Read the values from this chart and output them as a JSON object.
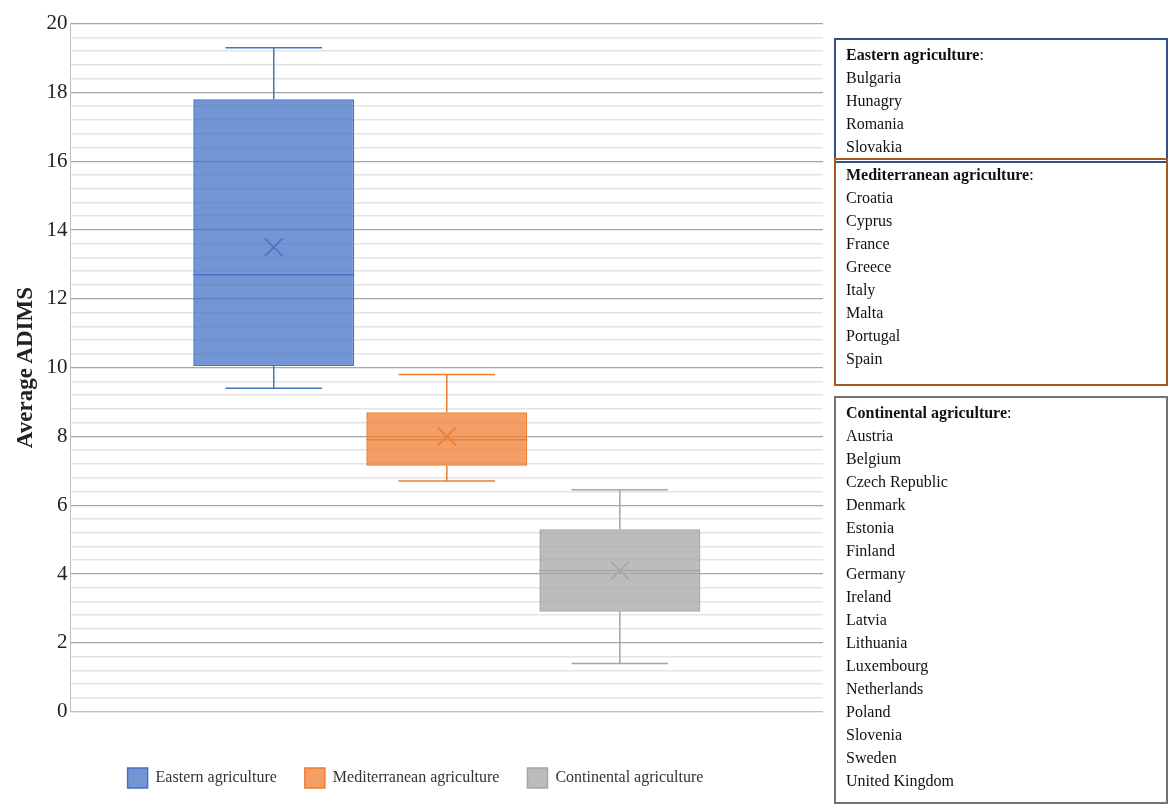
{
  "chart_data": {
    "type": "box",
    "ylabel": "Average ADIMS",
    "categories": [
      null
    ],
    "series": [
      {
        "name": "Eastern agriculture",
        "color": "#4472c4",
        "boxes": [
          {
            "low": 9.4,
            "q1": 10.05,
            "median": 12.7,
            "q3": 17.8,
            "high": 19.3,
            "mean": 13.5
          }
        ]
      },
      {
        "name": "Mediterranean agriculture",
        "color": "#ed7d31",
        "boxes": [
          {
            "low": 6.7,
            "q1": 7.15,
            "median": 7.9,
            "q3": 8.7,
            "high": 9.8,
            "mean": 8.0
          }
        ]
      },
      {
        "name": "Continental agriculture",
        "color": "#a5a5a5",
        "boxes": [
          {
            "low": 1.4,
            "q1": 2.9,
            "median": 4.1,
            "q3": 5.3,
            "high": 6.45,
            "mean": 4.1
          }
        ]
      }
    ],
    "ylim": [
      0,
      20
    ],
    "yticks": [
      0,
      {
        "value": 0.4,
        "label": null
      },
      {
        "value": 0.8,
        "label": null
      },
      {
        "value": 1.2,
        "label": null
      },
      {
        "value": 1.6,
        "label": null
      },
      2,
      {
        "value": 2.4,
        "label": null
      },
      {
        "value": 2.8,
        "label": null
      },
      {
        "value": 3.2,
        "label": null
      },
      {
        "value": 3.6,
        "label": null
      },
      4,
      {
        "value": 4.4,
        "label": null
      },
      {
        "value": 4.8,
        "label": null
      },
      {
        "value": 5.2,
        "label": null
      },
      {
        "value": 5.6,
        "label": null
      },
      6,
      {
        "value": 6.4,
        "label": null
      },
      {
        "value": 6.8,
        "label": null
      },
      {
        "value": 7.2,
        "label": null
      },
      {
        "value": 7.6,
        "label": null
      },
      8,
      {
        "value": 8.4,
        "label": null
      },
      {
        "value": 8.8,
        "label": null
      },
      {
        "value": 9.2,
        "label": null
      },
      {
        "value": 9.6,
        "label": null
      },
      10,
      {
        "value": 10.4,
        "label": null
      },
      {
        "value": 10.8,
        "label": null
      },
      {
        "value": 11.2,
        "label": null
      },
      {
        "value": 11.6,
        "label": null
      },
      12,
      {
        "value": 12.4,
        "label": null
      },
      {
        "value": 12.8,
        "label": null
      },
      {
        "value": 13.2,
        "label": null
      },
      {
        "value": 13.6,
        "label": null
      },
      14,
      {
        "value": 14.4,
        "label": null
      },
      {
        "value": 14.8,
        "label": null
      },
      {
        "value": 15.2,
        "label": null
      },
      {
        "value": 15.6,
        "label": null
      },
      16,
      {
        "value": 16.4,
        "label": null
      },
      {
        "value": 16.8,
        "label": null
      },
      {
        "value": 17.2,
        "label": null
      },
      {
        "value": 17.6,
        "label": null
      },
      18,
      {
        "value": 18.4,
        "label": null
      },
      {
        "value": 18.8,
        "label": null
      },
      {
        "value": 19.2,
        "label": null
      },
      {
        "value": 19.6,
        "label": null
      },
      20
    ],
    "grid": true,
    "legend": "bottom",
    "marker": "cross",
    "annotations": [
      "Eastern agriculture:\nBulgaria\nHunagry\nRomania\nSlovakia",
      "Mediterranean agriculture:\nCroatia\nCyprus\nFrance\nGreece\nItaly\nMalta\nPortugal\nSpain",
      "Continental agriculture:\nAustria\nBelgium\nCzech Republic\nDenmark\nEstonia\nFinland\nGermany\nIreland\nLatvia\nLithuania\nLuxembourg\nNetherlands\nPoland\nSlovenia\nSweden\nUnited Kingdom"
    ]
  }
}
